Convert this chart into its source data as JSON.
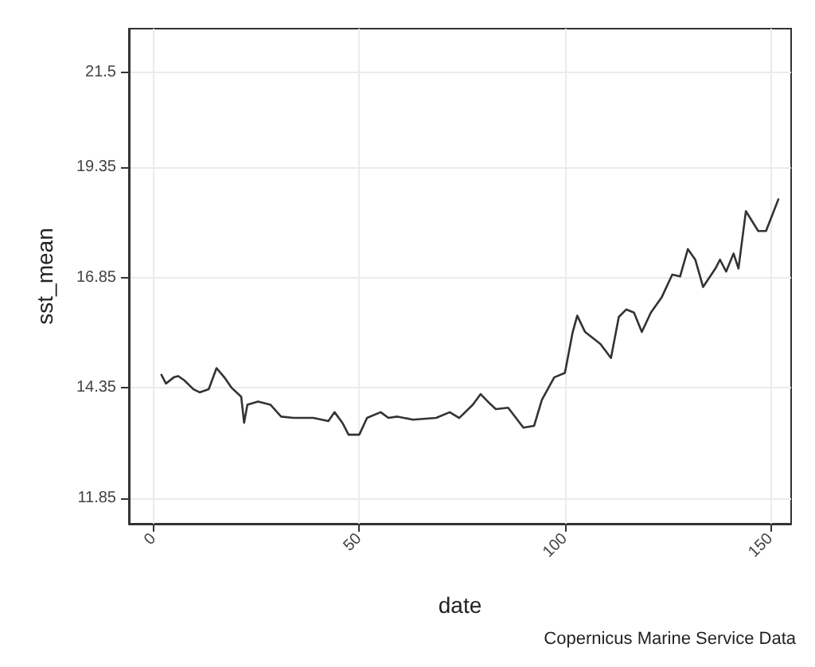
{
  "chart_data": {
    "type": "line",
    "xlabel": "date",
    "ylabel": "sst_mean",
    "annotations": [
      "Copernicus Marine Service Data"
    ],
    "x": [
      1.9,
      3.0,
      4.9,
      6.0,
      7.5,
      9.7,
      11.2,
      13.4,
      15.3,
      17.2,
      19.0,
      21.3,
      22.0,
      22.8,
      25.4,
      28.4,
      31.0,
      34.0,
      38.8,
      42.5,
      44.0,
      45.9,
      47.4,
      50.0,
      51.9,
      55.2,
      57.1,
      59.3,
      63.1,
      68.7,
      72.0,
      74.3,
      77.6,
      79.5,
      81.7,
      83.2,
      86.2,
      89.9,
      92.5,
      94.4,
      97.4,
      100,
      101.9,
      103,
      104.9,
      108.6,
      111.2,
      113.1,
      114.9,
      116.8,
      118.7,
      120.9,
      123.5,
      126.1,
      128,
      129.9,
      131.7,
      133.6,
      136.6,
      137.7,
      139.2,
      141,
      142.2,
      144,
      147,
      148.9,
      151.9
    ],
    "series": [
      {
        "color": "#333333",
        "values": [
          14.65,
          14.45,
          14.59,
          14.62,
          14.52,
          14.32,
          14.25,
          14.32,
          14.8,
          14.59,
          14.35,
          14.15,
          13.56,
          13.97,
          14.04,
          13.97,
          13.7,
          13.67,
          13.67,
          13.6,
          13.8,
          13.56,
          13.29,
          13.29,
          13.67,
          13.8,
          13.67,
          13.7,
          13.63,
          13.67,
          13.8,
          13.67,
          13.97,
          14.21,
          14.0,
          13.87,
          13.9,
          13.45,
          13.49,
          14.08,
          14.59,
          14.69,
          15.62,
          15.99,
          15.62,
          15.35,
          15.03,
          15.96,
          16.13,
          16.06,
          15.62,
          16.06,
          16.4,
          16.92,
          16.88,
          17.5,
          17.26,
          16.64,
          17.06,
          17.26,
          16.99,
          17.4,
          17.06,
          18.36,
          17.91,
          17.91,
          18.63
        ]
      }
    ],
    "xlim": [
      -6,
      155
    ],
    "xticks": [
      0,
      50,
      100,
      150
    ],
    "ylim": [
      11.27,
      22.5
    ],
    "yticks": [
      11.85,
      14.35,
      16.85,
      19.35,
      21.5
    ],
    "grid": true,
    "marker": "none",
    "line_style": "solid"
  }
}
